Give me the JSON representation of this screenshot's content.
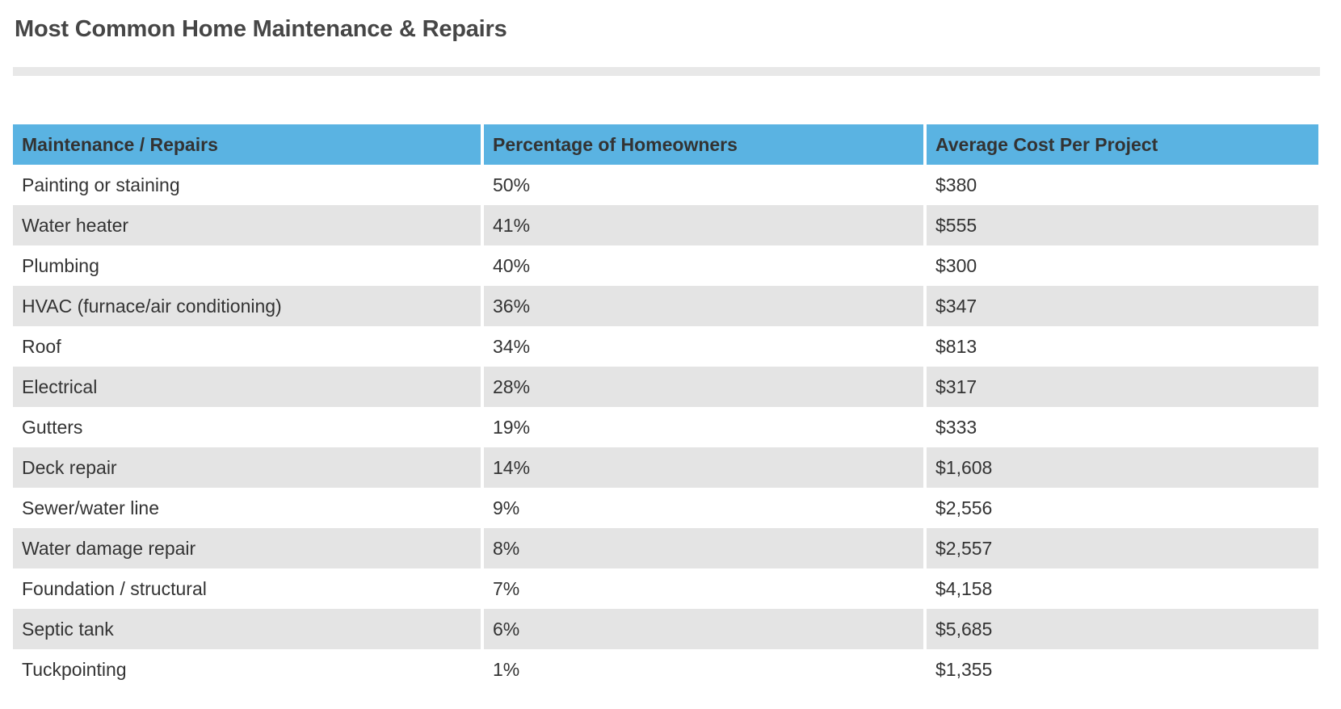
{
  "page": {
    "title": "Most Common Home Maintenance & Repairs"
  },
  "table": {
    "columns": [
      "Maintenance / Repairs",
      "Percentage of Homeowners",
      "Average Cost Per Project"
    ],
    "rows": [
      {
        "name": "Painting or staining",
        "percentage": "50%",
        "cost": "$380"
      },
      {
        "name": "Water heater",
        "percentage": "41%",
        "cost": "$555"
      },
      {
        "name": "Plumbing",
        "percentage": "40%",
        "cost": "$300"
      },
      {
        "name": "HVAC (furnace/air conditioning)",
        "percentage": "36%",
        "cost": "$347"
      },
      {
        "name": "Roof",
        "percentage": "34%",
        "cost": "$813"
      },
      {
        "name": "Electrical",
        "percentage": "28%",
        "cost": "$317"
      },
      {
        "name": "Gutters",
        "percentage": "19%",
        "cost": "$333"
      },
      {
        "name": "Deck repair",
        "percentage": "14%",
        "cost": "$1,608"
      },
      {
        "name": "Sewer/water line",
        "percentage": "9%",
        "cost": "$2,556"
      },
      {
        "name": "Water damage repair",
        "percentage": "8%",
        "cost": "$2,557"
      },
      {
        "name": "Foundation / structural",
        "percentage": "7%",
        "cost": "$4,158"
      },
      {
        "name": "Septic tank",
        "percentage": "6%",
        "cost": "$5,685"
      },
      {
        "name": "Tuckpointing",
        "percentage": "1%",
        "cost": "$1,355"
      }
    ]
  },
  "colors": {
    "header_bg": "#5ab3e2",
    "header_text": "#333333",
    "row_alt_bg": "#e4e4e4",
    "cell_text": "#333333",
    "title_text": "#464646",
    "divider": "#e8e8e8"
  },
  "chart_data": {
    "type": "table",
    "title": "Most Common Home Maintenance & Repairs",
    "columns": [
      "Maintenance / Repairs",
      "Percentage of Homeowners",
      "Average Cost Per Project"
    ],
    "categories": [
      "Painting or staining",
      "Water heater",
      "Plumbing",
      "HVAC (furnace/air conditioning)",
      "Roof",
      "Electrical",
      "Gutters",
      "Deck repair",
      "Sewer/water line",
      "Water damage repair",
      "Foundation / structural",
      "Septic tank",
      "Tuckpointing"
    ],
    "series": [
      {
        "name": "Percentage of Homeowners (%)",
        "values": [
          50,
          41,
          40,
          36,
          34,
          28,
          19,
          14,
          9,
          8,
          7,
          6,
          1
        ]
      },
      {
        "name": "Average Cost Per Project (USD)",
        "values": [
          380,
          555,
          300,
          347,
          813,
          317,
          333,
          1608,
          2556,
          2557,
          4158,
          5685,
          1355
        ]
      }
    ],
    "layout": {
      "header_fill": "#5ab3e2",
      "alternating_row_fill": "#e4e4e4",
      "first_body_row_fill": "#ffffff"
    }
  }
}
